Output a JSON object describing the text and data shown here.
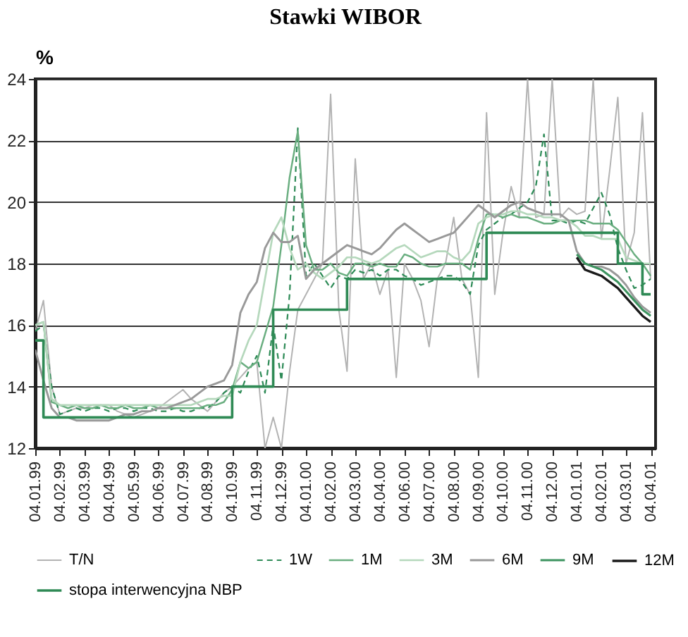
{
  "chart_data": {
    "type": "line",
    "title": "Stawki WIBOR",
    "ylabel": "%",
    "ylim": [
      12,
      24
    ],
    "yticks": [
      12,
      14,
      16,
      18,
      20,
      22,
      24
    ],
    "categories": [
      "04.01.99",
      null,
      null,
      "04.02.99",
      null,
      null,
      "04.03.99",
      null,
      null,
      "04.04.99",
      null,
      null,
      "04.05.99",
      null,
      null,
      "04.06.99",
      null,
      null,
      "04.07.99",
      null,
      null,
      "04.08.99",
      null,
      null,
      "04.10.99",
      null,
      null,
      "04.11.99",
      null,
      null,
      "04.12.99",
      null,
      null,
      "04.01.00",
      null,
      null,
      "04.02.00",
      null,
      null,
      "04.03.00",
      null,
      null,
      "04.04.00",
      null,
      null,
      "04.06.00",
      null,
      null,
      "04.07.00",
      null,
      null,
      "04.08.00",
      null,
      null,
      "04.09.00",
      null,
      null,
      "04.10.00",
      null,
      null,
      "04.11.00",
      null,
      null,
      "04.12.00",
      null,
      null,
      "04.01.01",
      null,
      null,
      "04.02.01",
      null,
      null,
      "04.03.01",
      null,
      null,
      "04.04.01"
    ],
    "grid": "y",
    "legend": "bottom",
    "series": [
      {
        "name": "T/N",
        "color": "#b3b3b3",
        "values": [
          15.8,
          16.8,
          14.0,
          13.1,
          13.2,
          13.3,
          13.3,
          13.4,
          13.4,
          13.4,
          13.2,
          13.1,
          13.0,
          13.1,
          13.2,
          13.3,
          13.5,
          13.7,
          13.9,
          13.6,
          13.4,
          13.2,
          13.5,
          13.8,
          14.0,
          14.3,
          14.6,
          14.8,
          12.0,
          13.0,
          12.0,
          14.5,
          16.5,
          17.0,
          17.5,
          18.0,
          23.5,
          16.5,
          14.5,
          21.4,
          17.5,
          18.0,
          17.0,
          17.8,
          14.3,
          18.0,
          17.5,
          16.8,
          15.3,
          17.5,
          18.0,
          19.5,
          17.5,
          17.0,
          14.3,
          22.9,
          17.0,
          19.0,
          20.5,
          19.5,
          24.0,
          19.5,
          19.6,
          24.0,
          19.5,
          19.8,
          19.6,
          19.7,
          24.0,
          18.8,
          21.0,
          23.4,
          18.0,
          19.0,
          22.9,
          17.5
        ]
      },
      {
        "name": "1W",
        "color": "#2e8b57",
        "line_style": "dashed",
        "values": [
          15.8,
          16.0,
          14.0,
          13.1,
          13.2,
          13.3,
          13.2,
          13.3,
          13.3,
          13.2,
          13.3,
          13.3,
          13.2,
          13.3,
          13.3,
          13.2,
          13.2,
          13.3,
          13.2,
          13.2,
          13.3,
          13.3,
          13.5,
          13.8,
          14.0,
          13.8,
          14.5,
          15.0,
          13.8,
          16.0,
          14.2,
          17.0,
          22.4,
          17.6,
          18.0,
          17.6,
          17.2,
          17.6,
          17.5,
          17.8,
          17.7,
          17.8,
          17.6,
          17.8,
          17.8,
          17.6,
          17.5,
          17.3,
          17.4,
          17.5,
          17.6,
          17.6,
          17.4,
          17.0,
          18.6,
          19.1,
          19.3,
          19.5,
          19.6,
          19.8,
          20.0,
          20.5,
          22.2,
          19.4,
          19.4,
          19.3,
          19.4,
          19.3,
          19.8,
          20.3,
          19.6,
          18.5,
          17.8,
          17.2,
          17.3,
          17.5
        ]
      },
      {
        "name": "1M",
        "color": "#6aae80",
        "values": [
          16.0,
          16.1,
          13.5,
          13.4,
          13.3,
          13.4,
          13.3,
          13.3,
          13.4,
          13.3,
          13.3,
          13.4,
          13.3,
          13.3,
          13.4,
          13.3,
          13.3,
          13.3,
          13.3,
          13.3,
          13.3,
          13.4,
          13.4,
          13.5,
          13.9,
          14.8,
          14.6,
          14.8,
          15.7,
          16.6,
          18.6,
          20.8,
          22.3,
          18.6,
          17.8,
          17.8,
          18.0,
          17.7,
          17.6,
          18.0,
          18.0,
          17.9,
          18.0,
          17.9,
          17.9,
          18.3,
          18.2,
          18.0,
          17.9,
          17.9,
          18.0,
          18.0,
          18.0,
          17.8,
          18.8,
          19.6,
          19.6,
          19.5,
          19.6,
          19.5,
          19.5,
          19.4,
          19.3,
          19.3,
          19.4,
          19.4,
          19.4,
          19.4,
          19.3,
          19.3,
          19.3,
          19.1,
          18.7,
          18.3,
          18.0,
          17.6
        ]
      },
      {
        "name": "3M",
        "color": "#b5d8bc",
        "values": [
          16.0,
          16.1,
          13.6,
          13.4,
          13.4,
          13.4,
          13.4,
          13.4,
          13.4,
          13.4,
          13.4,
          13.4,
          13.4,
          13.4,
          13.4,
          13.4,
          13.4,
          13.4,
          13.4,
          13.4,
          13.5,
          13.6,
          13.6,
          13.7,
          13.7,
          14.8,
          15.5,
          16.0,
          17.5,
          19.0,
          19.5,
          18.5,
          17.8,
          18.0,
          17.7,
          17.5,
          17.7,
          17.9,
          18.2,
          18.2,
          18.1,
          18.0,
          18.1,
          18.3,
          18.5,
          18.6,
          18.4,
          18.2,
          18.3,
          18.4,
          18.4,
          18.2,
          18.1,
          18.4,
          19.3,
          19.5,
          19.6,
          19.6,
          19.7,
          19.7,
          19.6,
          19.6,
          19.5,
          19.5,
          19.4,
          19.4,
          19.2,
          18.9,
          18.9,
          18.8,
          18.8,
          18.8,
          18.2,
          18.1,
          18.0,
          18.0
        ]
      },
      {
        "name": "6M",
        "color": "#999999",
        "values": [
          15.2,
          14.2,
          13.3,
          13.0,
          13.0,
          12.9,
          12.9,
          12.9,
          12.9,
          12.9,
          13.0,
          13.1,
          13.1,
          13.2,
          13.2,
          13.3,
          13.3,
          13.4,
          13.5,
          13.6,
          13.8,
          14.0,
          14.1,
          14.2,
          14.7,
          16.4,
          17.0,
          17.4,
          18.5,
          19.0,
          18.7,
          18.7,
          18.9,
          17.5,
          17.8,
          18.0,
          18.2,
          18.4,
          18.6,
          18.5,
          18.4,
          18.3,
          18.5,
          18.8,
          19.1,
          19.3,
          19.1,
          18.9,
          18.7,
          18.8,
          18.9,
          19.0,
          19.3,
          19.6,
          19.9,
          19.7,
          19.5,
          19.7,
          19.9,
          20.0,
          19.8,
          19.7,
          19.6,
          19.6,
          19.6,
          19.4,
          18.4,
          18.0,
          17.9,
          17.9,
          17.8,
          17.6,
          17.3,
          16.9,
          16.6,
          16.4
        ]
      },
      {
        "name": "9M",
        "color": "#3d9460",
        "values": [
          null,
          null,
          null,
          null,
          null,
          null,
          null,
          null,
          null,
          null,
          null,
          null,
          null,
          null,
          null,
          null,
          null,
          null,
          null,
          null,
          null,
          null,
          null,
          null,
          null,
          null,
          null,
          null,
          null,
          null,
          null,
          null,
          null,
          null,
          null,
          null,
          null,
          null,
          null,
          null,
          null,
          null,
          null,
          null,
          null,
          null,
          null,
          null,
          null,
          null,
          null,
          null,
          null,
          null,
          null,
          null,
          null,
          null,
          null,
          null,
          null,
          null,
          null,
          null,
          null,
          null,
          18.3,
          18.0,
          17.9,
          17.8,
          17.6,
          17.4,
          17.1,
          16.8,
          16.5,
          16.3
        ]
      },
      {
        "name": "12M",
        "color": "#1a1a1a",
        "values": [
          null,
          null,
          null,
          null,
          null,
          null,
          null,
          null,
          null,
          null,
          null,
          null,
          null,
          null,
          null,
          null,
          null,
          null,
          null,
          null,
          null,
          null,
          null,
          null,
          null,
          null,
          null,
          null,
          null,
          null,
          null,
          null,
          null,
          null,
          null,
          null,
          null,
          null,
          null,
          null,
          null,
          null,
          null,
          null,
          null,
          null,
          null,
          null,
          null,
          null,
          null,
          null,
          null,
          null,
          null,
          null,
          null,
          null,
          null,
          null,
          null,
          null,
          null,
          null,
          null,
          null,
          18.2,
          17.8,
          17.7,
          17.6,
          17.4,
          17.2,
          16.9,
          16.6,
          16.3,
          16.1
        ]
      },
      {
        "name": "stopa interwencyjna NBP",
        "type": "step",
        "color": "#2f8a55",
        "values": [
          15.5,
          13,
          13,
          13,
          13,
          13,
          13,
          13,
          13,
          13,
          13,
          13,
          13,
          13,
          13,
          13,
          13,
          13,
          13,
          13,
          13,
          13,
          13,
          13,
          14,
          14,
          14,
          14,
          14,
          16.5,
          16.5,
          16.5,
          16.5,
          16.5,
          16.5,
          16.5,
          16.5,
          16.5,
          17.5,
          17.5,
          17.5,
          17.5,
          17.5,
          17.5,
          17.5,
          17.5,
          17.5,
          17.5,
          17.5,
          17.5,
          17.5,
          17.5,
          17.5,
          17.5,
          17.5,
          19,
          19,
          19,
          19,
          19,
          19,
          19,
          19,
          19,
          19,
          19,
          19,
          19,
          19,
          19,
          19,
          18,
          18,
          18,
          17,
          17
        ]
      }
    ]
  }
}
